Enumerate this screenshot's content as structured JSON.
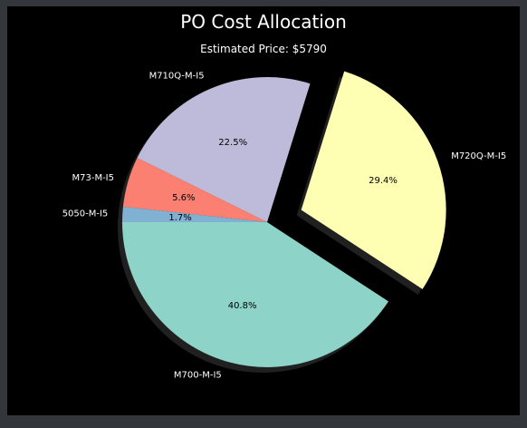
{
  "chart_data": {
    "type": "pie",
    "title": "PO Cost Allocation",
    "subtitle": "Estimated Price: $5790",
    "slices": [
      {
        "label": "M700-M-I5",
        "percent": 40.8,
        "pct_label": "40.8%",
        "color": "#8dd3c7",
        "exploded": false
      },
      {
        "label": "M720Q-M-I5",
        "percent": 29.4,
        "pct_label": "29.4%",
        "color": "#ffffb3",
        "exploded": true
      },
      {
        "label": "M710Q-M-I5",
        "percent": 22.5,
        "pct_label": "22.5%",
        "color": "#bebada",
        "exploded": false
      },
      {
        "label": "M73-M-I5",
        "percent": 5.6,
        "pct_label": "5.6%",
        "color": "#fb8072",
        "exploded": false
      },
      {
        "label": "5050-M-I5",
        "percent": 1.7,
        "pct_label": "1.7%",
        "color": "#80b1d3",
        "exploded": false
      }
    ],
    "shadow": true,
    "text_color": "#ffffff",
    "pct_text_color": "#000000",
    "background": "#000000"
  }
}
